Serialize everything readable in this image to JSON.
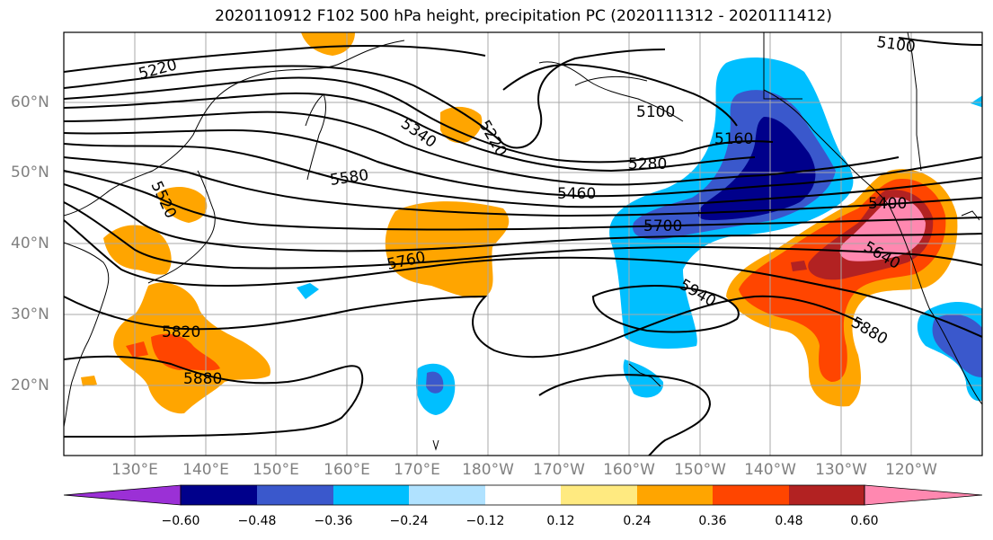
{
  "title": "2020110912 F102 500 hPa height, precipitation PC (2020111312 - 2020111412)",
  "lat_labels": [
    "60°N",
    "50°N",
    "40°N",
    "30°N",
    "20°N"
  ],
  "lon_labels": [
    "130°E",
    "140°E",
    "150°E",
    "160°E",
    "170°E",
    "180°W",
    "170°W",
    "160°W",
    "150°W",
    "140°W",
    "130°W",
    "120°W"
  ],
  "contour_labels": [
    "5220",
    "5100",
    "5340",
    "5220",
    "5100",
    "5160",
    "5580",
    "5280",
    "5460",
    "5700",
    "5760",
    "5400",
    "5640",
    "5940",
    "5880",
    "5820",
    "5880",
    "5520"
  ],
  "colorbar": {
    "colors": [
      "#9b30d6",
      "#00008b",
      "#3a58cc",
      "#00bfff",
      "#b0e2ff",
      "#ffffff",
      "#ffea80",
      "#ffa500",
      "#ff4500",
      "#b22222",
      "#ff88b0"
    ],
    "tick_labels": [
      "−0.60",
      "−0.48",
      "−0.36",
      "−0.24",
      "−0.12",
      "0.12",
      "0.24",
      "0.36",
      "0.48",
      "0.60"
    ]
  }
}
